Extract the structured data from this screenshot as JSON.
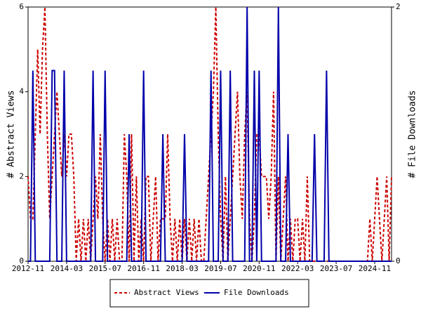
{
  "chart_data": {
    "type": "line",
    "ylabel": "# Abstract Views",
    "y2label": "# File Downloads",
    "ylim": [
      0,
      6
    ],
    "yticks": [
      0,
      2,
      4,
      6
    ],
    "y2lim": [
      0,
      2
    ],
    "y2ticks": [
      0,
      2
    ],
    "categories": [
      "2012-11",
      null,
      null,
      null,
      null,
      null,
      null,
      null,
      null,
      null,
      null,
      null,
      null,
      null,
      null,
      null,
      "2014-03",
      null,
      null,
      null,
      null,
      null,
      null,
      null,
      null,
      null,
      null,
      null,
      null,
      null,
      null,
      null,
      "2015-07",
      null,
      null,
      null,
      null,
      null,
      null,
      null,
      null,
      null,
      null,
      null,
      null,
      null,
      null,
      null,
      "2016-11",
      null,
      null,
      null,
      null,
      null,
      null,
      null,
      null,
      null,
      null,
      null,
      null,
      null,
      null,
      null,
      "2018-03",
      null,
      null,
      null,
      null,
      null,
      null,
      null,
      null,
      null,
      null,
      null,
      null,
      null,
      null,
      null,
      "2019-07",
      null,
      null,
      null,
      null,
      null,
      null,
      null,
      null,
      null,
      null,
      null,
      null,
      null,
      null,
      null,
      "2020-11",
      null,
      null,
      null,
      null,
      null,
      null,
      null,
      null,
      null,
      null,
      null,
      null,
      null,
      null,
      null,
      "2022-03",
      null,
      null,
      null,
      null,
      null,
      null,
      null,
      null,
      null,
      null,
      null,
      null,
      null,
      null,
      null,
      "2023-07",
      null,
      null,
      null,
      null,
      null,
      null,
      null,
      null,
      null,
      null,
      null,
      null,
      null,
      null,
      null,
      "2024-11",
      null,
      null,
      null,
      null,
      null,
      null,
      null
    ],
    "series": [
      {
        "name": "Abstract Views",
        "color": "#cc0000",
        "dash": true,
        "values": [
          2,
          1,
          1,
          3,
          5,
          3,
          5,
          6,
          3,
          1,
          2,
          3,
          4,
          3,
          2,
          3,
          2,
          3,
          3,
          2,
          0,
          1,
          0,
          1,
          0,
          1,
          0,
          1,
          2,
          1,
          3,
          1,
          0,
          1,
          0,
          1,
          0,
          1,
          0,
          0,
          3,
          2,
          0,
          3,
          0,
          2,
          0,
          1,
          0,
          2,
          2,
          0,
          1,
          2,
          0,
          1,
          1,
          1,
          3,
          1,
          0,
          1,
          0,
          1,
          0,
          1,
          0,
          1,
          0,
          1,
          0,
          1,
          0,
          0,
          1,
          2,
          3,
          4,
          6,
          3,
          1,
          0,
          2,
          0,
          1,
          2,
          3,
          4,
          2,
          1,
          3,
          4,
          1,
          0,
          1,
          3,
          3,
          2,
          2,
          2,
          1,
          2,
          4,
          0,
          2,
          0,
          1,
          2,
          0,
          1,
          0,
          1,
          1,
          0,
          1,
          0,
          2,
          0,
          0,
          0,
          0,
          0,
          0,
          0,
          0,
          0,
          0,
          0,
          0,
          0,
          0,
          0,
          0,
          0,
          0,
          0,
          0,
          0,
          0,
          0,
          0,
          0,
          1,
          0,
          1,
          2,
          1,
          0,
          1,
          2,
          0,
          2
        ]
      },
      {
        "name": "File Downloads",
        "color": "#0000aa",
        "dash": false,
        "axis": "y2",
        "values": [
          0,
          0,
          1.5,
          0,
          0,
          0,
          0,
          0,
          0,
          0,
          1.5,
          1.5,
          0,
          0,
          0,
          1.5,
          0,
          0,
          0,
          0,
          0,
          0,
          0,
          0,
          0,
          0,
          0,
          1.5,
          0,
          0,
          0,
          0,
          1.5,
          0,
          0,
          0,
          0,
          0,
          0,
          0,
          0,
          0,
          1,
          0,
          0,
          0,
          0,
          0,
          1.5,
          0,
          0,
          0,
          0,
          0,
          0,
          0,
          1,
          0,
          0,
          0,
          0,
          0,
          0,
          0,
          0,
          1,
          0,
          0,
          0,
          0,
          0,
          0,
          0,
          0,
          0,
          0,
          1.5,
          0,
          0,
          0,
          1.5,
          0,
          0,
          0,
          1.5,
          0,
          0,
          0,
          0,
          0,
          0,
          2,
          0,
          0,
          1.5,
          0,
          1.5,
          0,
          0,
          0,
          0,
          0,
          0,
          0,
          2,
          0,
          0,
          0,
          1,
          0,
          0,
          0,
          0,
          0,
          0,
          0,
          0,
          0,
          0,
          1,
          0,
          0,
          0,
          0,
          1.5,
          0,
          0,
          0,
          0,
          0,
          0,
          0,
          0,
          0,
          0,
          0,
          0,
          0,
          0,
          0,
          0,
          0,
          0,
          0,
          0,
          0,
          0,
          0,
          0,
          0,
          0,
          0
        ]
      }
    ]
  }
}
